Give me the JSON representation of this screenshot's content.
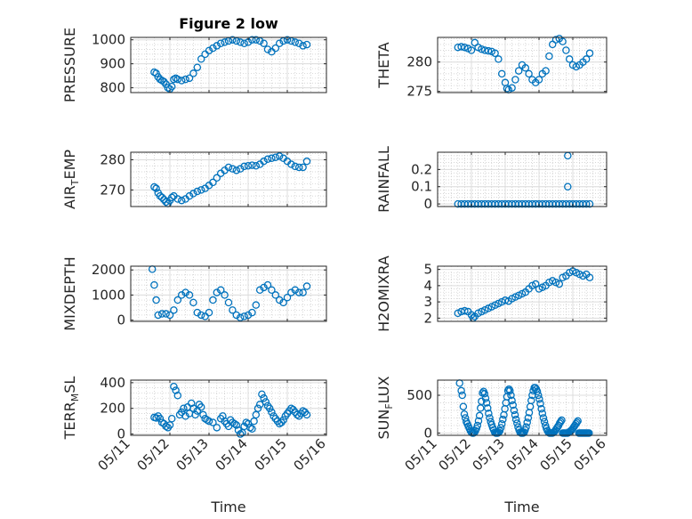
{
  "chart_data": [
    {
      "type": "scatter",
      "title": "Figure 2 low",
      "ylabel": "PRESSURE",
      "ylim": [
        780,
        1010
      ],
      "yticks": [
        "800",
        "900",
        "1000"
      ],
      "ytick_values": [
        800,
        900,
        1000
      ],
      "xlim": [
        11,
        16
      ],
      "x_ticks_visible": false,
      "grid": true,
      "marker": "open-circle",
      "color": "#0072BD",
      "x": [
        11.6,
        11.65,
        11.7,
        11.75,
        11.8,
        11.85,
        11.9,
        11.95,
        12.0,
        12.05,
        12.1,
        12.15,
        12.2,
        12.3,
        12.4,
        12.5,
        12.6,
        12.7,
        12.8,
        12.9,
        13.0,
        13.1,
        13.2,
        13.3,
        13.4,
        13.5,
        13.6,
        13.7,
        13.8,
        13.9,
        14.0,
        14.1,
        14.2,
        14.3,
        14.4,
        14.5,
        14.6,
        14.7,
        14.8,
        14.9,
        15.0,
        15.1,
        15.2,
        15.3,
        15.4,
        15.5
      ],
      "y": [
        865,
        860,
        845,
        835,
        830,
        825,
        815,
        800,
        795,
        805,
        835,
        840,
        835,
        830,
        835,
        840,
        860,
        885,
        920,
        940,
        955,
        965,
        975,
        985,
        990,
        995,
        1000,
        995,
        990,
        985,
        990,
        1000,
        1000,
        995,
        985,
        960,
        950,
        965,
        985,
        995,
        1000,
        995,
        990,
        985,
        975,
        980
      ]
    },
    {
      "type": "scatter",
      "ylabel": "THETA",
      "ylim": [
        274.8,
        284.2
      ],
      "yticks": [
        "275",
        "280"
      ],
      "ytick_values": [
        275,
        280
      ],
      "xlim": [
        11,
        16
      ],
      "x_ticks_visible": false,
      "grid": true,
      "marker": "open-circle",
      "color": "#0072BD",
      "x": [
        11.6,
        11.7,
        11.8,
        11.9,
        12.0,
        12.1,
        12.2,
        12.3,
        12.4,
        12.5,
        12.6,
        12.7,
        12.8,
        12.9,
        13.0,
        13.05,
        13.1,
        13.2,
        13.3,
        13.4,
        13.5,
        13.6,
        13.7,
        13.8,
        13.9,
        14.0,
        14.1,
        14.2,
        14.3,
        14.4,
        14.5,
        14.6,
        14.7,
        14.8,
        14.9,
        15.0,
        15.1,
        15.2,
        15.3,
        15.4,
        15.5
      ],
      "y": [
        282.5,
        282.6,
        282.5,
        282.3,
        282.0,
        283.3,
        282.5,
        282.2,
        282.0,
        281.9,
        281.8,
        281.5,
        280.5,
        278.0,
        276.5,
        275.5,
        275.3,
        275.6,
        277.0,
        278.5,
        279.5,
        279.0,
        278.0,
        277.0,
        276.5,
        277.0,
        278.0,
        278.5,
        281.0,
        283.0,
        283.8,
        284.0,
        283.5,
        282.0,
        280.5,
        279.5,
        279.2,
        279.5,
        280.0,
        280.5,
        281.5
      ]
    },
    {
      "type": "scatter",
      "ylabel": "AIR_TEMP",
      "ylim": [
        264.5,
        282.5
      ],
      "yticks": [
        "270",
        "280"
      ],
      "ytick_values": [
        270,
        280
      ],
      "xlim": [
        11,
        16
      ],
      "x_ticks_visible": false,
      "grid": true,
      "marker": "open-circle",
      "color": "#0072BD",
      "x": [
        11.6,
        11.65,
        11.7,
        11.75,
        11.8,
        11.85,
        11.9,
        11.95,
        12.0,
        12.05,
        12.1,
        12.2,
        12.3,
        12.4,
        12.5,
        12.6,
        12.7,
        12.8,
        12.9,
        13.0,
        13.1,
        13.2,
        13.3,
        13.4,
        13.5,
        13.6,
        13.7,
        13.8,
        13.9,
        14.0,
        14.1,
        14.2,
        14.3,
        14.4,
        14.5,
        14.6,
        14.7,
        14.8,
        14.9,
        15.0,
        15.1,
        15.2,
        15.3,
        15.4,
        15.5
      ],
      "y": [
        271,
        270.5,
        269,
        268,
        267.5,
        266.8,
        266,
        265.5,
        266.5,
        267.5,
        268,
        267,
        266.5,
        267,
        268,
        268.8,
        269.5,
        270,
        270.5,
        271.5,
        272.5,
        274,
        275.5,
        276.5,
        277.5,
        277,
        276.5,
        277,
        277.8,
        278,
        278.2,
        278,
        278.5,
        279.5,
        280.2,
        280.5,
        280.8,
        281.2,
        280.5,
        279.5,
        278.5,
        277.8,
        277.5,
        277.5,
        279.5
      ]
    },
    {
      "type": "scatter",
      "ylabel": "RAINFALL",
      "ylim": [
        -0.015,
        0.3
      ],
      "yticks": [
        "0",
        "0.1",
        "0.2"
      ],
      "ytick_values": [
        0,
        0.1,
        0.2
      ],
      "xlim": [
        11,
        16
      ],
      "x_ticks_visible": false,
      "grid": true,
      "marker": "open-circle",
      "color": "#0072BD",
      "x": [
        11.6,
        11.7,
        11.8,
        11.9,
        12.0,
        12.1,
        12.2,
        12.3,
        12.4,
        12.5,
        12.6,
        12.7,
        12.8,
        12.9,
        13.0,
        13.1,
        13.2,
        13.3,
        13.4,
        13.5,
        13.6,
        13.7,
        13.8,
        13.9,
        14.0,
        14.1,
        14.2,
        14.3,
        14.4,
        14.5,
        14.6,
        14.7,
        14.8,
        14.9,
        15.0,
        15.1,
        15.2,
        15.3,
        15.4,
        15.5,
        14.85,
        14.85
      ],
      "y": [
        0,
        0,
        0,
        0,
        0,
        0,
        0,
        0,
        0,
        0,
        0,
        0,
        0,
        0,
        0,
        0,
        0,
        0,
        0,
        0,
        0,
        0,
        0,
        0,
        0,
        0,
        0,
        0,
        0,
        0,
        0,
        0,
        0,
        0,
        0,
        0,
        0,
        0,
        0,
        0,
        0.1,
        0.28
      ]
    },
    {
      "type": "scatter",
      "ylabel": "MIXDEPTH",
      "ylim": [
        -50,
        2150
      ],
      "yticks": [
        "0",
        "1000",
        "2000"
      ],
      "ytick_values": [
        0,
        1000,
        2000
      ],
      "xlim": [
        11,
        16
      ],
      "x_ticks_visible": false,
      "grid": true,
      "marker": "open-circle",
      "color": "#0072BD",
      "x": [
        11.55,
        11.6,
        11.65,
        11.7,
        11.8,
        11.9,
        12.0,
        12.1,
        12.2,
        12.3,
        12.4,
        12.5,
        12.6,
        12.7,
        12.8,
        12.9,
        13.0,
        13.1,
        13.2,
        13.3,
        13.4,
        13.5,
        13.6,
        13.7,
        13.8,
        13.9,
        14.0,
        14.1,
        14.2,
        14.3,
        14.4,
        14.5,
        14.6,
        14.7,
        14.8,
        14.9,
        15.0,
        15.1,
        15.2,
        15.3,
        15.4,
        15.5
      ],
      "y": [
        2030,
        1400,
        800,
        200,
        250,
        250,
        200,
        400,
        800,
        1000,
        1100,
        1000,
        700,
        300,
        200,
        150,
        300,
        800,
        1100,
        1200,
        1000,
        700,
        400,
        200,
        100,
        150,
        200,
        300,
        600,
        1200,
        1300,
        1400,
        1200,
        1000,
        800,
        700,
        900,
        1100,
        1200,
        1100,
        1100,
        1350
      ]
    },
    {
      "type": "scatter",
      "ylabel": "H2OMIXRA",
      "ylim": [
        1.8,
        5.2
      ],
      "yticks": [
        "2",
        "3",
        "4",
        "5"
      ],
      "ytick_values": [
        2,
        3,
        4,
        5
      ],
      "xlim": [
        11,
        16
      ],
      "x_ticks_visible": false,
      "grid": true,
      "marker": "open-circle",
      "color": "#0072BD",
      "x": [
        11.6,
        11.7,
        11.8,
        11.9,
        12.0,
        12.05,
        12.1,
        12.2,
        12.3,
        12.4,
        12.5,
        12.6,
        12.7,
        12.8,
        12.9,
        13.0,
        13.1,
        13.2,
        13.3,
        13.4,
        13.5,
        13.6,
        13.7,
        13.8,
        13.9,
        14.0,
        14.1,
        14.2,
        14.3,
        14.4,
        14.5,
        14.6,
        14.7,
        14.8,
        14.9,
        15.0,
        15.1,
        15.2,
        15.3,
        15.4,
        15.5
      ],
      "y": [
        2.3,
        2.4,
        2.45,
        2.4,
        2.2,
        2.0,
        2.1,
        2.3,
        2.4,
        2.5,
        2.6,
        2.7,
        2.8,
        2.9,
        3.0,
        3.1,
        3.05,
        3.2,
        3.3,
        3.4,
        3.5,
        3.6,
        3.8,
        4.0,
        4.1,
        3.8,
        3.9,
        4.0,
        4.2,
        4.3,
        4.2,
        4.1,
        4.5,
        4.6,
        4.8,
        4.9,
        4.8,
        4.7,
        4.6,
        4.7,
        4.5
      ]
    },
    {
      "type": "scatter",
      "ylabel": "TERR_MSL",
      "ylim": [
        -10,
        420
      ],
      "yticks": [
        "0",
        "200",
        "400"
      ],
      "ytick_values": [
        0,
        200,
        400
      ],
      "xlim": [
        11,
        16
      ],
      "xticks": [
        "05/11",
        "05/12",
        "05/13",
        "05/14",
        "05/15",
        "05/16"
      ],
      "xtick_values": [
        11,
        12,
        13,
        14,
        15,
        16
      ],
      "xlabel": "Time",
      "grid": true,
      "marker": "open-circle",
      "color": "#0072BD",
      "x": [
        11.6,
        11.65,
        11.7,
        11.75,
        11.8,
        11.85,
        11.9,
        11.95,
        12.0,
        12.05,
        12.1,
        12.15,
        12.2,
        12.25,
        12.3,
        12.35,
        12.4,
        12.45,
        12.5,
        12.55,
        12.6,
        12.65,
        12.7,
        12.75,
        12.8,
        12.85,
        12.9,
        12.95,
        13.0,
        13.1,
        13.2,
        13.3,
        13.35,
        13.4,
        13.45,
        13.5,
        13.55,
        13.6,
        13.65,
        13.7,
        13.75,
        13.8,
        13.85,
        13.9,
        13.95,
        14.0,
        14.05,
        14.1,
        14.15,
        14.2,
        14.25,
        14.3,
        14.35,
        14.4,
        14.45,
        14.5,
        14.55,
        14.6,
        14.65,
        14.7,
        14.75,
        14.8,
        14.85,
        14.9,
        14.95,
        15.0,
        15.05,
        15.1,
        15.15,
        15.2,
        15.25,
        15.3,
        15.35,
        15.4,
        15.45,
        15.5
      ],
      "y": [
        130,
        125,
        140,
        120,
        90,
        80,
        60,
        50,
        70,
        120,
        370,
        340,
        300,
        150,
        170,
        200,
        140,
        210,
        160,
        240,
        200,
        150,
        180,
        230,
        210,
        150,
        120,
        110,
        100,
        90,
        50,
        120,
        140,
        100,
        80,
        60,
        110,
        90,
        80,
        70,
        30,
        0,
        10,
        60,
        90,
        80,
        50,
        40,
        100,
        150,
        200,
        230,
        310,
        280,
        250,
        220,
        200,
        170,
        140,
        120,
        100,
        80,
        90,
        110,
        140,
        160,
        180,
        200,
        190,
        170,
        150,
        140,
        160,
        180,
        170,
        150
      ]
    },
    {
      "type": "scatter",
      "ylabel": "SUN_FLUX",
      "ylim": [
        -30,
        700
      ],
      "yticks": [
        "0",
        "500"
      ],
      "ytick_values": [
        0,
        500
      ],
      "xlim": [
        11,
        16
      ],
      "xticks": [
        "05/11",
        "05/12",
        "05/13",
        "05/14",
        "05/15",
        "05/16"
      ],
      "xtick_values": [
        11,
        12,
        13,
        14,
        15,
        16
      ],
      "xlabel": "Time",
      "grid": true,
      "marker": "open-circle",
      "color": "#0072BD",
      "x": [
        11.65,
        11.7,
        11.73,
        11.76,
        11.79,
        11.82,
        11.85,
        11.88,
        11.91,
        11.94,
        11.97,
        12.0,
        12.03,
        12.06,
        12.09,
        12.12,
        12.15,
        12.18,
        12.21,
        12.24,
        12.27,
        12.3,
        12.33,
        12.36,
        12.39,
        12.42,
        12.45,
        12.48,
        12.51,
        12.54,
        12.57,
        12.6,
        12.63,
        12.66,
        12.69,
        12.72,
        12.75,
        12.78,
        12.81,
        12.84,
        12.87,
        12.9,
        12.93,
        12.96,
        12.99,
        13.02,
        13.05,
        13.08,
        13.11,
        13.14,
        13.17,
        13.2,
        13.23,
        13.26,
        13.29,
        13.32,
        13.35,
        13.38,
        13.41,
        13.44,
        13.47,
        13.5,
        13.53,
        13.56,
        13.59,
        13.62,
        13.65,
        13.68,
        13.71,
        13.74,
        13.77,
        13.8,
        13.83,
        13.86,
        13.89,
        13.92,
        13.95,
        13.98,
        14.01,
        14.04,
        14.07,
        14.1,
        14.13,
        14.16,
        14.19,
        14.22,
        14.25,
        14.28,
        14.31,
        14.34,
        14.37,
        14.4,
        14.43,
        14.46,
        14.49,
        14.52,
        14.55,
        14.58,
        14.61,
        14.64,
        14.67,
        14.7,
        14.73,
        14.76,
        14.79,
        14.82,
        14.85,
        14.88,
        14.91,
        14.94,
        14.97,
        15.0,
        15.03,
        15.06,
        15.09,
        15.12,
        15.15,
        15.18,
        15.21,
        15.24,
        15.27,
        15.3,
        15.33,
        15.36,
        15.39,
        15.42,
        15.45,
        15.48
      ],
      "y": [
        660,
        560,
        500,
        350,
        250,
        200,
        150,
        120,
        90,
        60,
        30,
        10,
        0,
        0,
        10,
        30,
        60,
        100,
        160,
        230,
        330,
        420,
        530,
        550,
        520,
        460,
        400,
        330,
        260,
        200,
        150,
        110,
        70,
        40,
        10,
        0,
        0,
        0,
        10,
        30,
        70,
        120,
        180,
        240,
        320,
        400,
        480,
        560,
        580,
        560,
        500,
        430,
        370,
        300,
        240,
        180,
        130,
        80,
        40,
        10,
        0,
        0,
        0,
        10,
        40,
        80,
        140,
        200,
        270,
        350,
        430,
        500,
        560,
        600,
        600,
        580,
        550,
        500,
        450,
        390,
        320,
        260,
        200,
        150,
        100,
        60,
        30,
        10,
        0,
        0,
        0,
        0,
        10,
        20,
        40,
        60,
        80,
        100,
        130,
        150,
        170,
        0,
        0,
        0,
        0,
        0,
        0,
        10,
        20,
        30,
        40,
        60,
        80,
        100,
        120,
        140,
        160,
        0,
        0,
        0,
        0,
        0,
        0,
        0,
        0,
        0,
        0,
        0
      ]
    }
  ]
}
